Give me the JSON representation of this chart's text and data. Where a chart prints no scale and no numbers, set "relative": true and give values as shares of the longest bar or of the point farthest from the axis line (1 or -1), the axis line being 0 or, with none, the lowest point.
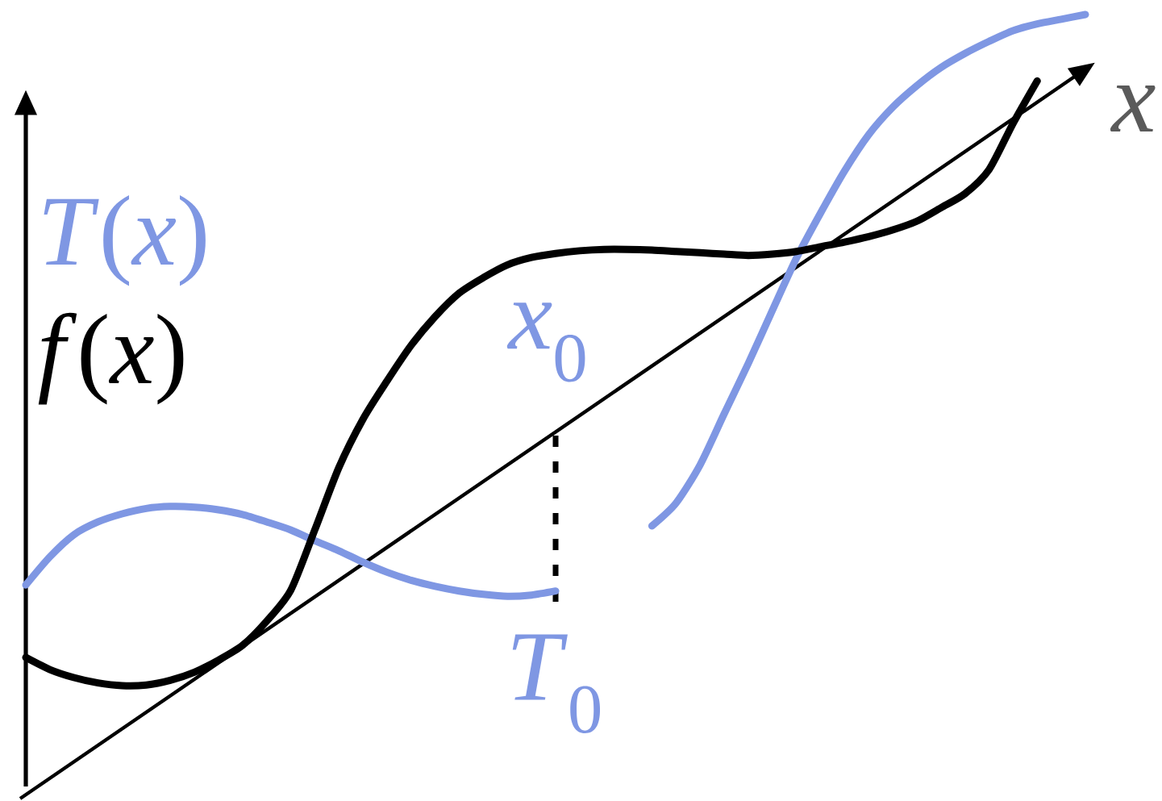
{
  "chart_data": {
    "type": "line",
    "relative": true,
    "xlabel": "x",
    "legend": "top left",
    "categories": [
      null,
      null,
      null,
      null,
      null,
      null,
      null,
      null,
      null,
      null,
      null,
      null,
      null,
      null,
      null,
      null,
      null,
      null,
      null,
      null,
      null,
      null,
      null,
      null,
      null,
      null,
      null,
      null,
      null,
      null,
      null,
      null,
      null,
      null,
      null,
      null,
      null,
      null,
      null,
      null,
      null,
      null,
      null,
      null,
      null
    ],
    "series": [
      {
        "name": "*T*(*x*)",
        "color": "#7f97e3",
        "values": [
          0.15,
          0.192,
          0.225,
          0.244,
          0.256,
          0.264,
          0.267,
          0.266,
          0.262,
          0.255,
          0.244,
          0.232,
          0.216,
          0.201,
          0.184,
          0.169,
          0.157,
          0.148,
          0.141,
          0.136,
          0.133,
          0.135,
          0.141,
          null,
          null,
          null,
          0.238,
          0.272,
          0.329,
          0.405,
          0.48,
          0.559,
          0.637,
          0.704,
          0.767,
          0.821,
          0.862,
          0.894,
          0.921,
          0.942,
          0.96,
          0.976,
          0.986,
          0.993,
          1.0
        ]
      },
      {
        "name": "*f*(*x*)",
        "color": "#000000",
        "values": [
          0.042,
          0.024,
          0.012,
          0.004,
          0.0,
          0.001,
          0.008,
          0.02,
          0.038,
          0.06,
          0.096,
          0.142,
          0.232,
          0.325,
          0.397,
          0.454,
          0.507,
          0.55,
          0.585,
          0.608,
          0.627,
          0.638,
          0.644,
          0.648,
          0.65,
          0.65,
          0.649,
          0.647,
          0.645,
          0.643,
          0.641,
          0.643,
          0.647,
          0.654,
          0.661,
          0.669,
          0.679,
          0.692,
          0.712,
          0.733,
          0.769,
          0.838,
          0.901,
          null,
          null
        ]
      }
    ],
    "annotations": [
      "*x*$_{0}$",
      "*T*$_{0}$"
    ]
  }
}
